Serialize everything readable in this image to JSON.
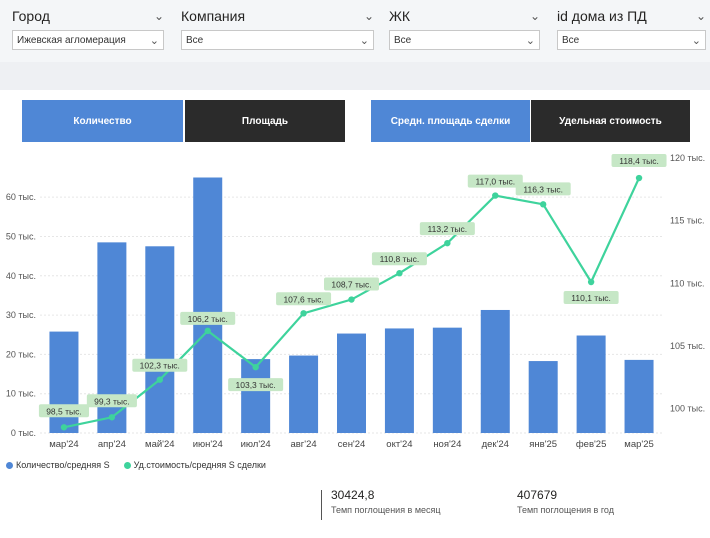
{
  "filters": [
    {
      "label": "Город",
      "value": "Ижевская агломерация"
    },
    {
      "label": "Компания",
      "value": "Все"
    },
    {
      "label": "ЖК",
      "value": "Все"
    },
    {
      "label": "id дома из ПД",
      "value": "Все"
    }
  ],
  "tabs": [
    {
      "label": "Количество",
      "active": true
    },
    {
      "label": "Площадь",
      "active": false
    },
    {
      "label": "Средн. площадь сделки",
      "active": true
    },
    {
      "label": "Удельная стоимость",
      "active": false
    }
  ],
  "colors": {
    "bar": "#4f87d6",
    "line": "#3ed39c",
    "label_bg": "#c6e7c6",
    "tab_active": "#4f87d6",
    "tab_inactive": "#2b2b2b"
  },
  "chart_data": {
    "type": "bar+line",
    "categories": [
      "мар'24",
      "апр'24",
      "май'24",
      "июн'24",
      "июл'24",
      "авг'24",
      "сен'24",
      "окт'24",
      "ноя'24",
      "дек'24",
      "янв'25",
      "фев'25",
      "мар'25"
    ],
    "series": [
      {
        "name": "Количество/средняя S",
        "type": "bar",
        "axis": "left",
        "values": [
          25800,
          48500,
          47500,
          65000,
          18800,
          19700,
          25300,
          26600,
          26800,
          31300,
          18300,
          24800,
          18600
        ]
      },
      {
        "name": "Уд.стоимость/средняя S сделки",
        "type": "line",
        "axis": "right",
        "values": [
          98.5,
          99.3,
          102.3,
          106.2,
          103.3,
          107.6,
          108.7,
          110.8,
          113.2,
          117.0,
          116.3,
          110.1,
          118.4
        ],
        "data_labels": [
          "98,5 тыс.",
          "99,3 тыс.",
          "102,3 тыс.",
          "106,2 тыс.",
          "103,3 тыс.",
          "107,6 тыс.",
          "108,7 тыс.",
          "110,8 тыс.",
          "113,2 тыс.",
          "117,0 тыс.",
          "116,3 тыс.",
          "110,1 тыс.",
          "118,4 тыс."
        ]
      }
    ],
    "left_axis": {
      "ticks": [
        0,
        10000,
        20000,
        30000,
        40000,
        50000,
        60000
      ],
      "tick_labels": [
        "0 тыс.",
        "10 тыс.",
        "20 тыс.",
        "30 тыс.",
        "40 тыс.",
        "50 тыс.",
        "60 тыс."
      ],
      "ylim": [
        0,
        70000
      ]
    },
    "right_axis": {
      "ticks": [
        100,
        105,
        110,
        115,
        120
      ],
      "tick_labels": [
        "100 тыс.",
        "105 тыс.",
        "110 тыс.",
        "115 тыс.",
        "120 тыс."
      ],
      "ylim": [
        97.5,
        120.5
      ]
    },
    "grid": true,
    "legend_position": "bottom-left"
  },
  "kpis": [
    {
      "value": "30424,8",
      "label": "Темп поглощения в месяц"
    },
    {
      "value": "407679",
      "label": "Темп поглощения в год"
    }
  ]
}
